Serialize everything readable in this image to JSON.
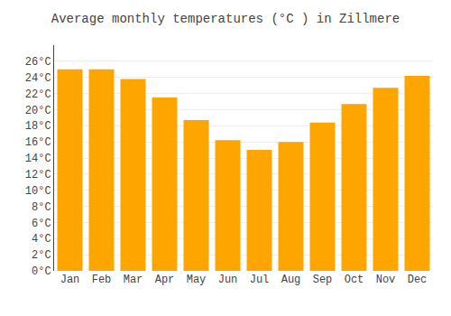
{
  "chart_data": {
    "type": "bar",
    "title": "Average monthly temperatures (°C ) in Zillmere",
    "categories": [
      "Jan",
      "Feb",
      "Mar",
      "Apr",
      "May",
      "Jun",
      "Jul",
      "Aug",
      "Sep",
      "Oct",
      "Nov",
      "Dec"
    ],
    "values": [
      25.0,
      25.0,
      23.8,
      21.5,
      18.7,
      16.2,
      15.0,
      16.0,
      18.4,
      20.7,
      22.7,
      24.2
    ],
    "color": "#FFA500",
    "ylim": [
      0,
      28
    ],
    "yticks": [
      {
        "value": 0,
        "label": "0°C"
      },
      {
        "value": 2,
        "label": "2°C"
      },
      {
        "value": 4,
        "label": "4°C"
      },
      {
        "value": 6,
        "label": "6°C"
      },
      {
        "value": 8,
        "label": "8°C"
      },
      {
        "value": 10,
        "label": "10°C"
      },
      {
        "value": 12,
        "label": "12°C"
      },
      {
        "value": 14,
        "label": "14°C"
      },
      {
        "value": 16,
        "label": "16°C"
      },
      {
        "value": 18,
        "label": "18°C"
      },
      {
        "value": 20,
        "label": "20°C"
      },
      {
        "value": 22,
        "label": "22°C"
      },
      {
        "value": 24,
        "label": "24°C"
      },
      {
        "value": 26,
        "label": "26°C"
      }
    ],
    "grid": true
  }
}
